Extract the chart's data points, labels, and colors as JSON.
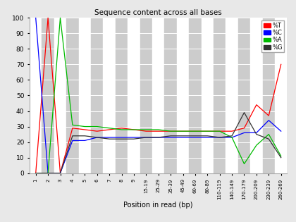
{
  "title": "Sequence content across all bases",
  "xlabel": "Position in read (bp)",
  "ylim": [
    0,
    100
  ],
  "legend": [
    "%T",
    "%C",
    "%A",
    "%G"
  ],
  "colors": {
    "T": "#ff0000",
    "C": "#0000ff",
    "A": "#00bb00",
    "G": "#333333"
  },
  "x_labels": [
    "1",
    "2",
    "3",
    "4",
    "5",
    "6",
    "7",
    "8",
    "9",
    "15-19",
    "25-29",
    "35-39",
    "45-49",
    "60-69",
    "80-89",
    "110-119",
    "140-149",
    "170-179",
    "200-209",
    "230-239",
    "260-269"
  ],
  "x_positions": [
    0,
    1,
    2,
    3,
    4,
    5,
    6,
    7,
    8,
    9,
    10,
    11,
    12,
    13,
    14,
    15,
    16,
    17,
    18,
    19,
    20
  ],
  "T": [
    0,
    100,
    0,
    29,
    28,
    27,
    28,
    29,
    28,
    27,
    27,
    27,
    27,
    27,
    27,
    27,
    27,
    29,
    44,
    37,
    70
  ],
  "C": [
    100,
    0,
    0,
    21,
    21,
    23,
    23,
    23,
    23,
    23,
    23,
    23,
    23,
    23,
    23,
    23,
    23,
    26,
    26,
    34,
    27
  ],
  "A": [
    0,
    0,
    100,
    31,
    30,
    30,
    29,
    28,
    28,
    28,
    28,
    27,
    27,
    27,
    27,
    27,
    23,
    6,
    18,
    25,
    11
  ],
  "G": [
    0,
    0,
    0,
    24,
    24,
    23,
    22,
    22,
    22,
    23,
    23,
    24,
    24,
    24,
    24,
    23,
    24,
    39,
    25,
    22,
    10
  ]
}
